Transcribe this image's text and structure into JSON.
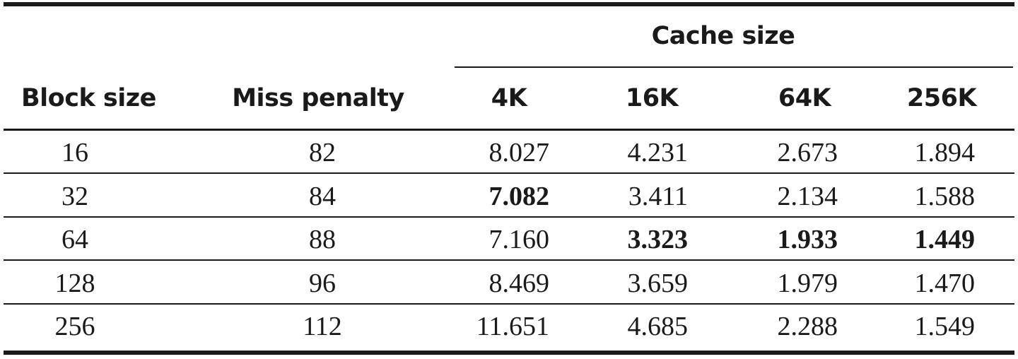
{
  "table": {
    "group_header": "Cache size",
    "columns": {
      "block_size": "Block size",
      "miss_penalty": "Miss penalty",
      "c4k": "4K",
      "c16k": "16K",
      "c64k": "64K",
      "c256k": "256K"
    },
    "rows": [
      {
        "block": "16",
        "penalty": "82",
        "c4k": "8.027",
        "c16k": "4.231",
        "c64k": "2.673",
        "c256k": "1.894"
      },
      {
        "block": "32",
        "penalty": "84",
        "c4k": "7.082",
        "c16k": "3.411",
        "c64k": "2.134",
        "c256k": "1.588"
      },
      {
        "block": "64",
        "penalty": "88",
        "c4k": "7.160",
        "c16k": "3.323",
        "c64k": "1.933",
        "c256k": "1.449"
      },
      {
        "block": "128",
        "penalty": "96",
        "c4k": "8.469",
        "c16k": "3.659",
        "c64k": "1.979",
        "c256k": "1.470"
      },
      {
        "block": "256",
        "penalty": "112",
        "c4k": "11.651",
        "c16k": "4.685",
        "c64k": "2.288",
        "c256k": "1.549"
      }
    ],
    "bold_cells": [
      {
        "row": 1,
        "col": "c4k"
      },
      {
        "row": 2,
        "col": "c16k"
      },
      {
        "row": 2,
        "col": "c64k"
      },
      {
        "row": 2,
        "col": "c256k"
      }
    ]
  }
}
